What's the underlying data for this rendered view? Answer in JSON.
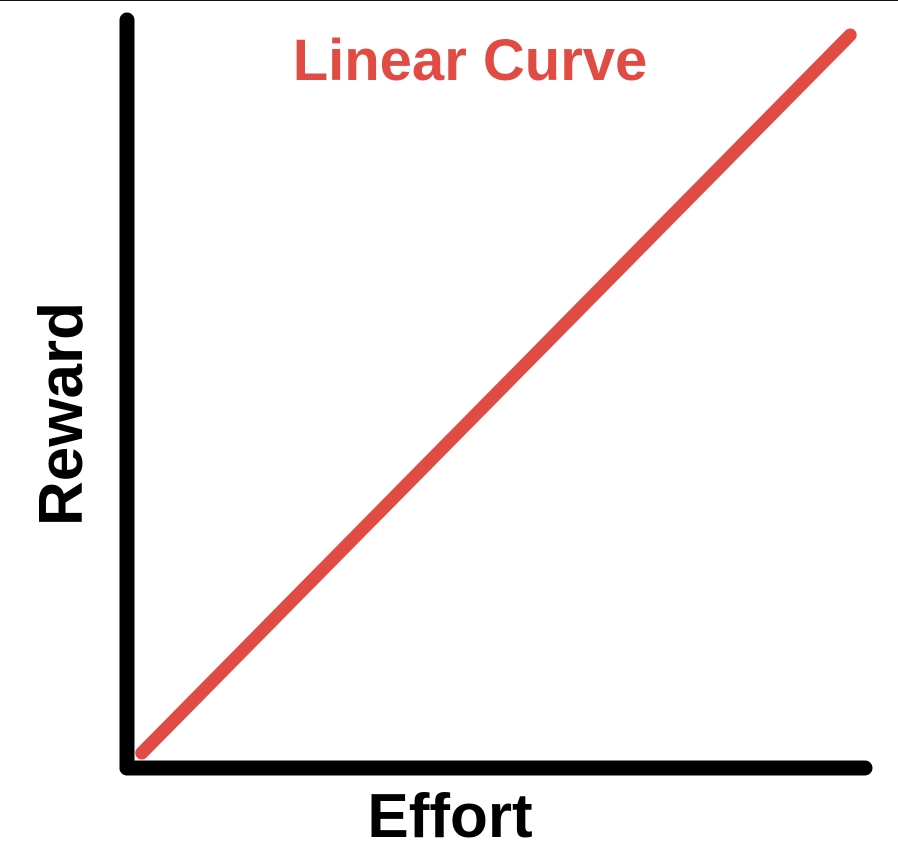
{
  "chart_data": {
    "type": "line",
    "title": "Linear Curve",
    "xlabel": "Effort",
    "ylabel": "Reward",
    "xlim": [
      0,
      1
    ],
    "ylim": [
      0,
      1
    ],
    "grid": false,
    "legend": "none",
    "axis_color": "#000000",
    "series": [
      {
        "color": "#e04b43",
        "x": [
          0.02,
          0.98
        ],
        "y": [
          0.02,
          0.98
        ]
      }
    ]
  }
}
